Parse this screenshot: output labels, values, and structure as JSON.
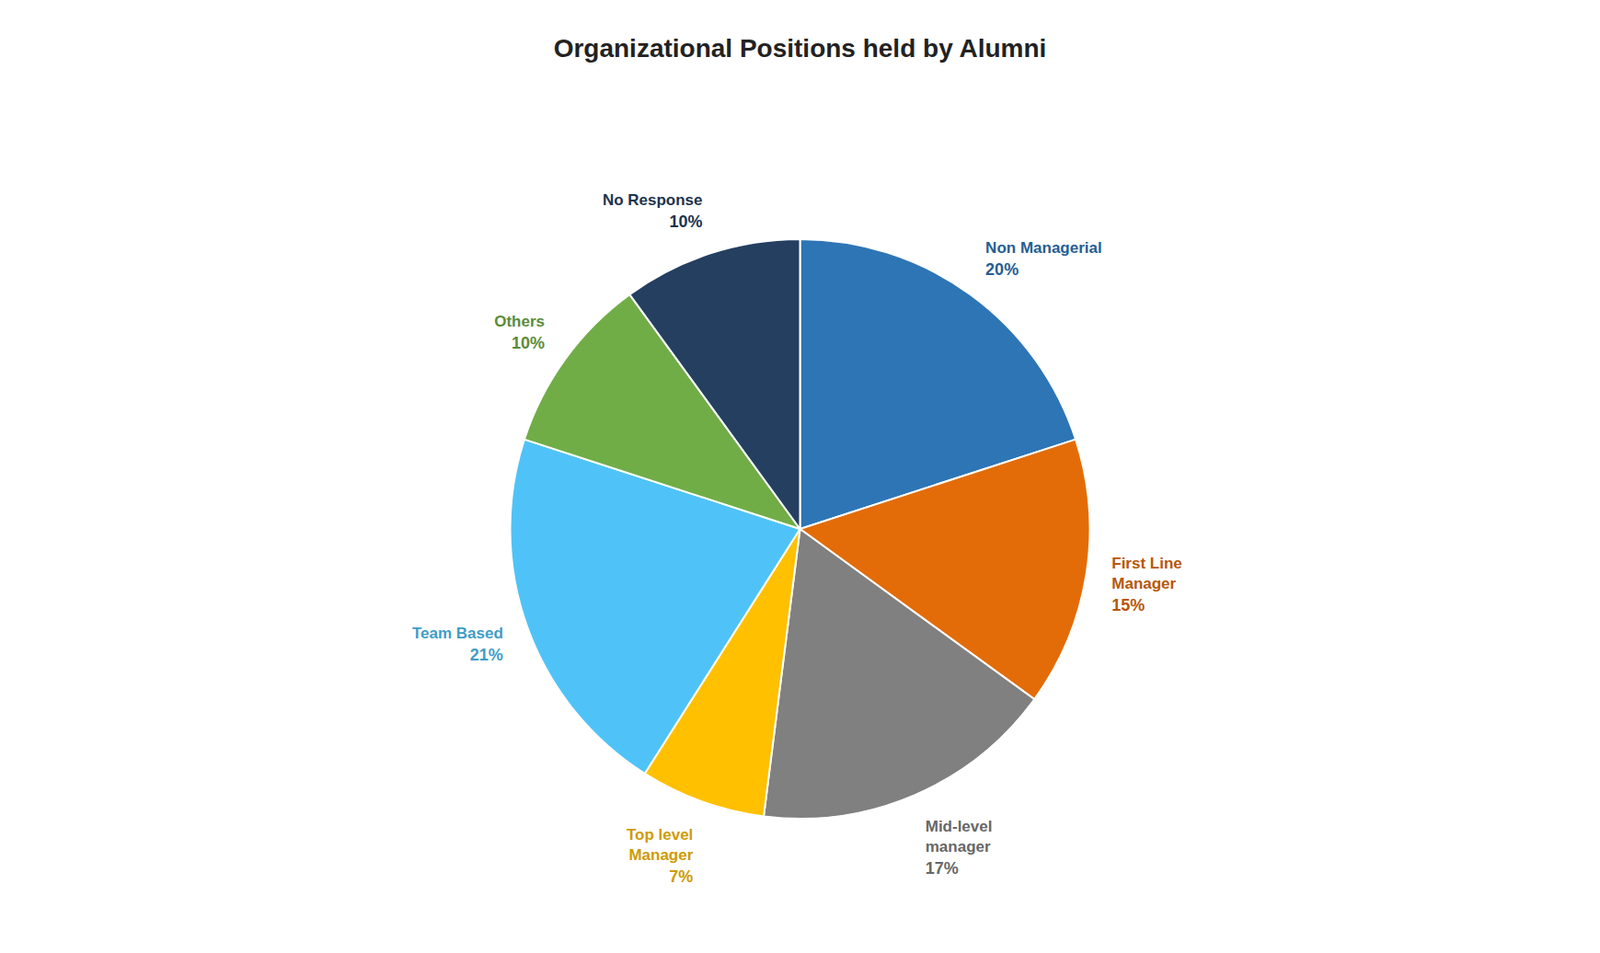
{
  "chart_data": {
    "type": "pie",
    "title": "Organizational Positions held by Alumni",
    "categories": [
      "Non Managerial",
      "First Line\nManager",
      "Mid-level\nmanager",
      "Top level\nManager",
      "Team Based",
      "Others",
      "No Response"
    ],
    "values": [
      20,
      15,
      17,
      7,
      21,
      10,
      10
    ],
    "value_labels": [
      "20%",
      "15%",
      "17%",
      "7%",
      "21%",
      "10%",
      "10%"
    ],
    "colors": [
      "#2e75b6",
      "#e36c09",
      "#808080",
      "#ffc000",
      "#4fc3f7",
      "#70ad47",
      "#243f60"
    ],
    "data_labels": true
  }
}
